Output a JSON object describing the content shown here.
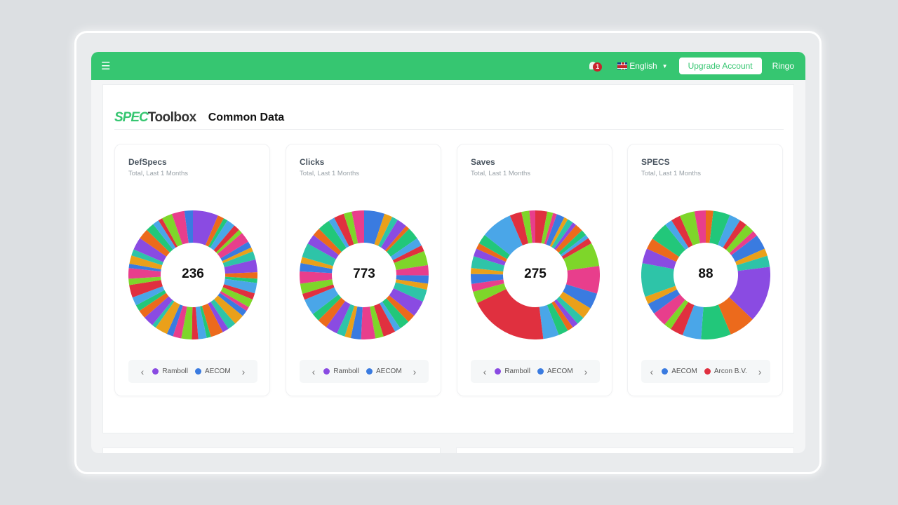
{
  "topbar": {
    "menu_icon": "hamburger-icon",
    "notification_count": "1",
    "language": "English",
    "upgrade_label": "Upgrade Account",
    "user": "Ringo"
  },
  "header": {
    "logo_text_a": "SPEC",
    "logo_text_b": "Toolbox",
    "title": "Common Data"
  },
  "palette": [
    "#8a4be2",
    "#3a7be0",
    "#e0303f",
    "#ec6a1c",
    "#eaa01a",
    "#7ed62a",
    "#22c77a",
    "#2ec4a8",
    "#e83e8c",
    "#4aa6e8"
  ],
  "cards": [
    {
      "title": "DefSpecs",
      "subtitle": "Total, Last 1 Months",
      "total": "236",
      "legend": [
        {
          "label": "Ramboll",
          "color": "#8a4be2"
        },
        {
          "label": "AECOM",
          "color": "#3a7be0"
        }
      ],
      "segments": [
        12,
        3,
        2,
        4,
        3,
        2,
        5,
        3,
        2,
        4,
        6,
        3,
        2,
        5,
        3,
        4,
        2,
        3,
        5,
        4,
        3,
        6,
        2,
        4,
        3,
        5,
        4,
        3,
        6,
        2,
        5,
        4,
        3,
        4,
        6,
        3,
        5,
        2,
        4,
        3,
        6,
        5,
        4,
        3,
        2,
        5,
        6,
        4
      ]
    },
    {
      "title": "Clicks",
      "subtitle": "Total, Last 1 Months",
      "total": "773",
      "legend": [
        {
          "label": "Ramboll",
          "color": "#8a4be2"
        },
        {
          "label": "AECOM",
          "color": "#3a7be0"
        }
      ],
      "segments": [
        10,
        4,
        3,
        5,
        2,
        6,
        4,
        3,
        7,
        5,
        4,
        3,
        6,
        8,
        4,
        5,
        3,
        6,
        4,
        7,
        5,
        3,
        4,
        6,
        5,
        4,
        8,
        3,
        5,
        6,
        4,
        3,
        7,
        5,
        4,
        6,
        3,
        5,
        4,
        6
      ]
    },
    {
      "title": "Saves",
      "subtitle": "Total, Last 1 Months",
      "total": "275",
      "legend": [
        {
          "label": "Ramboll",
          "color": "#8a4be2"
        },
        {
          "label": "AECOM",
          "color": "#3a7be0"
        }
      ],
      "segments": [
        6,
        3,
        2,
        4,
        2,
        3,
        2,
        4,
        3,
        2,
        3,
        12,
        14,
        8,
        6,
        4,
        3,
        3,
        5,
        8,
        40,
        6,
        4,
        5,
        3,
        6,
        4,
        3,
        5,
        16,
        6,
        4,
        3
      ]
    },
    {
      "title": "SPECS",
      "subtitle": "Total, Last 1 Months",
      "total": "88",
      "legend": [
        {
          "label": "AECOM",
          "color": "#3a7be0"
        },
        {
          "label": "Arcon B.V.",
          "color": "#e0303f"
        }
      ],
      "segments": [
        4,
        9,
        6,
        4,
        5,
        3,
        8,
        4,
        6,
        30,
        14,
        16,
        10,
        7,
        4,
        8,
        6,
        4,
        18,
        8,
        6,
        10,
        4,
        5,
        8,
        6
      ]
    }
  ]
}
